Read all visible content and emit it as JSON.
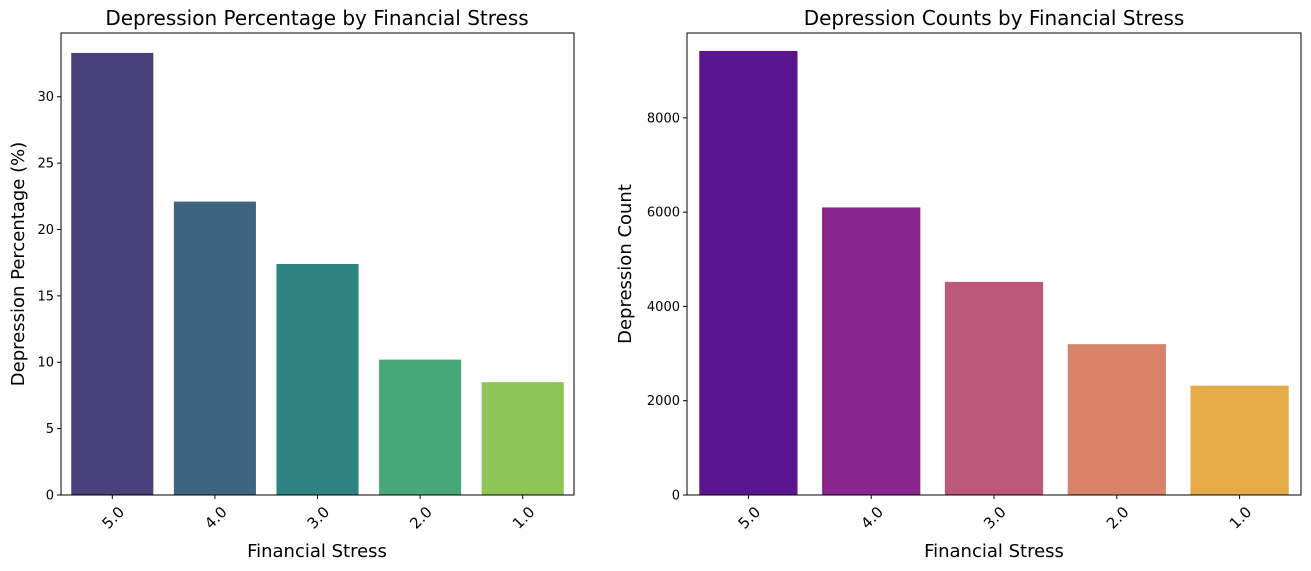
{
  "chart_data": [
    {
      "type": "bar",
      "title": "Depression Percentage by Financial Stress",
      "xlabel": "Financial Stress",
      "ylabel": "Depression Percentage (%)",
      "categories": [
        "5.0",
        "4.0",
        "3.0",
        "2.0",
        "1.0"
      ],
      "values": [
        33.3,
        22.1,
        17.4,
        10.2,
        8.5
      ],
      "ylim": [
        0,
        34.8
      ],
      "yticks": [
        0,
        5,
        10,
        15,
        20,
        25,
        30
      ],
      "colors": [
        "#48417a",
        "#3e657f",
        "#2e8480",
        "#47a878",
        "#8ec556"
      ],
      "grid": false,
      "xtick_rotation": -45
    },
    {
      "type": "bar",
      "title": "Depression Counts by Financial Stress",
      "xlabel": "Financial Stress",
      "ylabel": "Depression Count",
      "categories": [
        "5.0",
        "4.0",
        "3.0",
        "2.0",
        "1.0"
      ],
      "values": [
        9420,
        6100,
        4520,
        3200,
        2320
      ],
      "ylim": [
        0,
        9800
      ],
      "yticks": [
        0,
        2000,
        4000,
        6000,
        8000
      ],
      "colors": [
        "#5b168f",
        "#8a258e",
        "#bc5879",
        "#d88367",
        "#e4ab47"
      ],
      "grid": false,
      "xtick_rotation": -45
    }
  ]
}
